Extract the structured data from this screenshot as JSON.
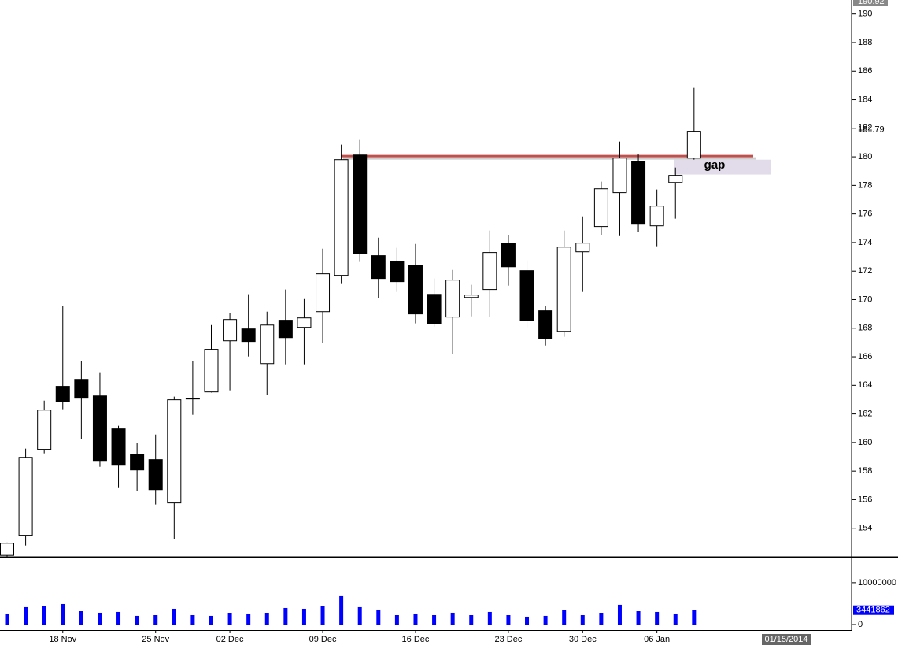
{
  "chart_data": {
    "type": "candlestick",
    "categories": [
      null,
      null,
      null,
      "18 Nov",
      null,
      null,
      null,
      null,
      "25 Nov",
      null,
      null,
      null,
      "02 Dec",
      null,
      null,
      null,
      null,
      "09 Dec",
      null,
      null,
      null,
      null,
      "16 Dec",
      null,
      null,
      null,
      null,
      "23 Dec",
      null,
      null,
      null,
      "30 Dec",
      null,
      null,
      null,
      "06 Jan",
      null,
      null
    ],
    "open": [
      152.1,
      153.51,
      159.52,
      163.93,
      164.42,
      163.26,
      160.95,
      159.18,
      158.8,
      155.77,
      163.05,
      163.54,
      167.12,
      167.95,
      165.52,
      168.56,
      168.06,
      169.16,
      171.7,
      180.13,
      173.08,
      172.69,
      172.41,
      170.37,
      168.78,
      170.15,
      170.71,
      173.96,
      172.03,
      169.22,
      167.78,
      173.35,
      175.12,
      177.49,
      179.69,
      175.17,
      178.2,
      179.91
    ],
    "high": [
      153.0,
      159.57,
      162.93,
      169.55,
      165.69,
      164.92,
      161.17,
      159.96,
      160.56,
      163.21,
      165.69,
      168.22,
      169.05,
      170.38,
      169.16,
      170.71,
      170.04,
      173.57,
      180.85,
      181.18,
      174.34,
      173.63,
      173.9,
      171.48,
      172.08,
      171.04,
      174.84,
      174.51,
      172.75,
      169.55,
      174.84,
      175.83,
      178.26,
      181.07,
      180.19,
      177.71,
      179.25,
      184.82
    ],
    "low": [
      152.0,
      152.79,
      159.24,
      162.33,
      160.23,
      158.3,
      156.81,
      156.59,
      155.66,
      153.23,
      161.94,
      163.5,
      163.65,
      166.02,
      163.32,
      165.47,
      165.47,
      166.96,
      171.15,
      172.64,
      170.1,
      170.54,
      168.34,
      168.11,
      166.19,
      168.83,
      168.78,
      170.98,
      168.06,
      166.79,
      167.4,
      170.54,
      174.51,
      174.45,
      174.73,
      173.74,
      175.67,
      179.8
    ],
    "close": [
      152.95,
      158.96,
      162.27,
      162.88,
      163.1,
      158.74,
      158.41,
      158.08,
      156.7,
      162.99,
      163.1,
      166.52,
      168.61,
      167.07,
      168.22,
      167.34,
      168.72,
      171.81,
      179.8,
      173.24,
      171.48,
      171.26,
      169.0,
      168.34,
      171.37,
      170.32,
      173.3,
      172.3,
      168.56,
      167.29,
      173.68,
      173.96,
      177.76,
      179.91,
      175.28,
      176.55,
      178.7,
      181.79
    ],
    "up_color": "#ffffff",
    "down_color": "#000000",
    "ylim": [
      152,
      190.92
    ],
    "yticks": [
      154,
      156,
      158,
      160,
      162,
      164,
      166,
      168,
      170,
      172,
      174,
      176,
      178,
      180,
      182,
      184,
      186,
      188,
      190
    ],
    "resistance": {
      "value": 180.05,
      "color": "#c0504d"
    },
    "gap": {
      "label": "gap",
      "range": [
        178.76,
        179.8
      ],
      "color": "#e2dcea"
    },
    "volume": {
      "values": [
        2450000,
        4150000,
        4340000,
        4900000,
        3200000,
        2830000,
        3020000,
        2080000,
        2260000,
        3770000,
        2260000,
        2080000,
        2640000,
        2450000,
        2640000,
        3960000,
        3770000,
        4340000,
        6790000,
        4150000,
        3580000,
        2260000,
        2450000,
        2260000,
        2830000,
        2260000,
        3020000,
        2260000,
        1890000,
        2080000,
        3400000,
        2260000,
        2640000,
        4720000,
        3200000,
        3020000,
        2450000,
        3441862
      ],
      "color": "#0000ff",
      "ylim": [
        0,
        16000000
      ],
      "yticks": [
        0,
        10000000
      ]
    },
    "cursor_date": "01/15/2014"
  }
}
